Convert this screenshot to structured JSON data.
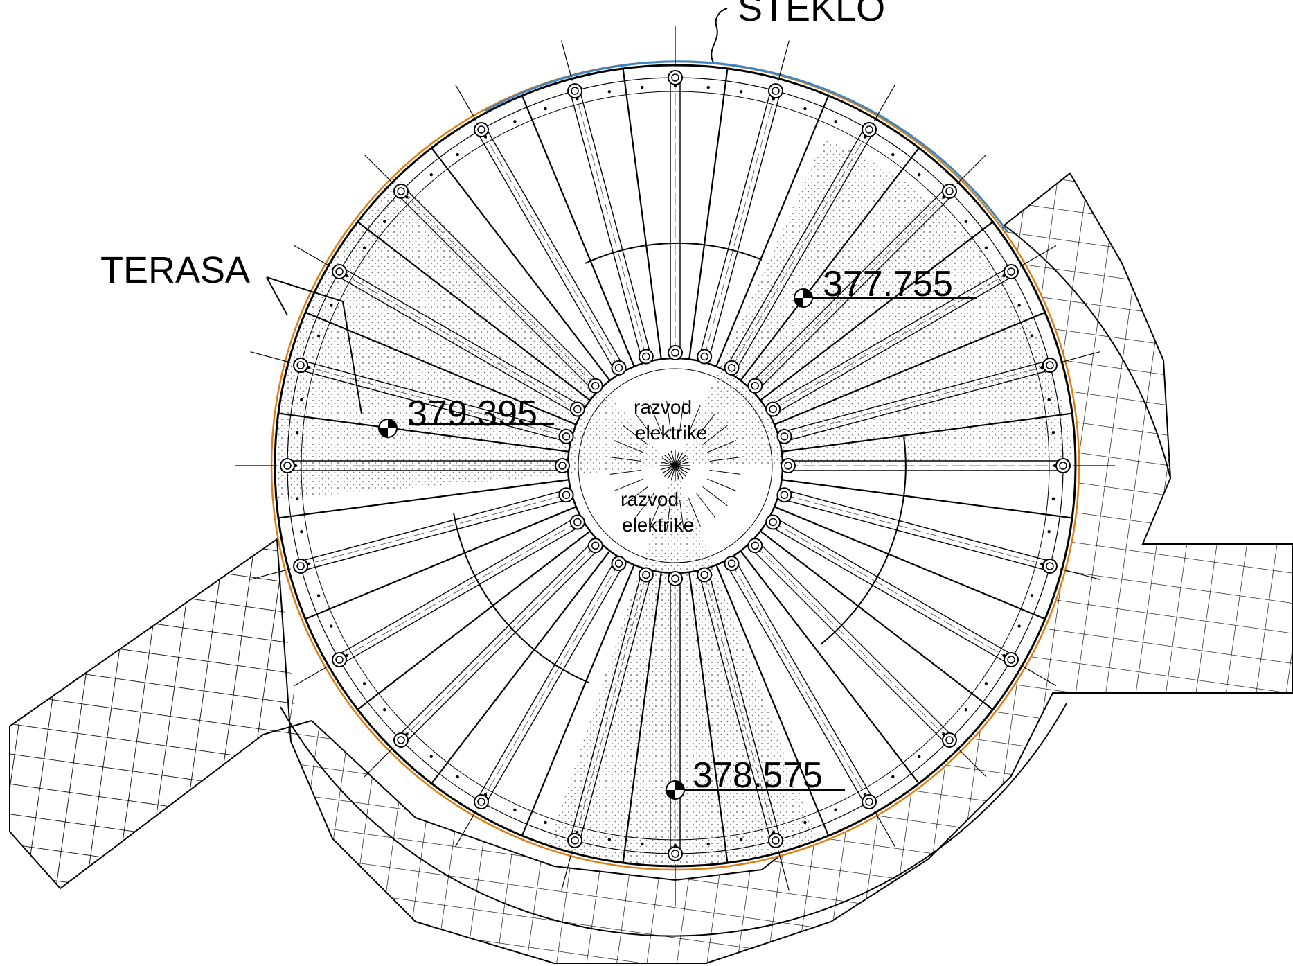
{
  "labels": {
    "glass": "STEKLO",
    "terrace": "TERASA",
    "power_distribution_upper_1": "razvod",
    "power_distribution_upper_2": "elektrike",
    "power_distribution_lower_1": "razvod",
    "power_distribution_lower_2": "elektrike"
  },
  "elevations": {
    "upper_right": "377.755",
    "left": "379.395",
    "bottom": "378.575"
  },
  "colors": {
    "line": "#000000",
    "glass_edge": "#3a86c8",
    "outer_rim": "#e07d10",
    "hatch_fill": "#e8e8e8"
  }
}
